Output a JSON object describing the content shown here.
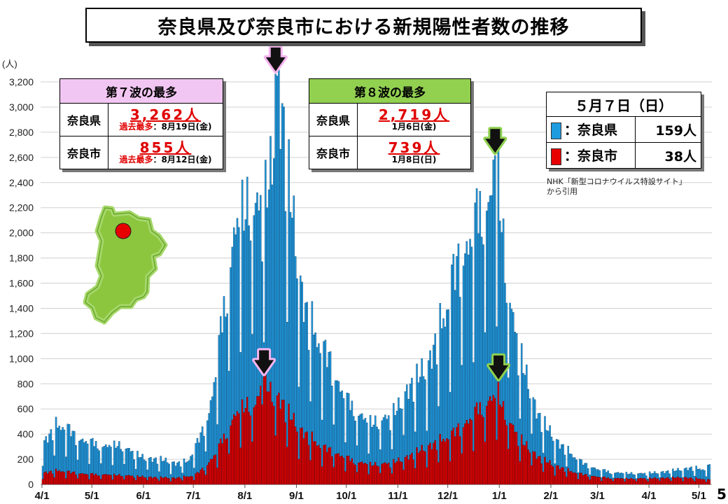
{
  "title": "奈良県及び奈良市における新規陽性者数の推移",
  "page_number": "5",
  "source_note": "NHK「新型コロナウイルス特設サイト」\nから引用",
  "wave7": {
    "heading": "第７波の最多",
    "head_color": "#f2c6f2",
    "pref_label": "奈良県",
    "pref_value": "3,262人",
    "pref_note_prefix": "過去最多",
    "pref_note_date": "：8月19日(金)",
    "city_label": "奈良市",
    "city_value": "855人",
    "city_note_prefix": "過去最多",
    "city_note_date": "：8月12日(金)"
  },
  "wave8": {
    "heading": "第８波の最多",
    "head_color": "#92d050",
    "pref_label": "奈良県",
    "pref_value": "2,719人",
    "pref_date": "1月6日(金)",
    "city_label": "奈良市",
    "city_value": "739人",
    "city_date": "1月8日(日)"
  },
  "latest": {
    "heading": "５月７日（日）",
    "pref_label": "：奈良県",
    "pref_value": "159人",
    "city_label": "：奈良市",
    "city_value": "38人"
  },
  "colors": {
    "prefecture_bar": "#1f9be0",
    "city_bar": "#e60000",
    "map_fill": "#8cc63f",
    "map_marker": "#e60000",
    "wave7_arrow": "#f7b6f0",
    "wave8_arrow": "#8fd14f"
  },
  "chart_data": {
    "type": "bar",
    "ylabel": "(人)",
    "ylim": [
      0,
      3200
    ],
    "yticks": [
      0,
      200,
      400,
      600,
      800,
      1000,
      1200,
      1400,
      1600,
      1800,
      2000,
      2200,
      2400,
      2600,
      2800,
      3000,
      3200
    ],
    "ytick_labels": [
      "0",
      "200",
      "400",
      "600",
      "800",
      "1,000",
      "1,200",
      "1,400",
      "1,600",
      "1,800",
      "2,000",
      "2,200",
      "2,400",
      "2,600",
      "2,800",
      "3,000",
      "3,200"
    ],
    "x_tick_labels": [
      "4/1",
      "5/1",
      "6/1",
      "7/1",
      "8/1",
      "9/1",
      "10/1",
      "11/1",
      "12/1",
      "1/1",
      "2/1",
      "3/1",
      "4/1",
      "5/1"
    ],
    "x_tick_day_index": [
      0,
      30,
      61,
      91,
      122,
      153,
      183,
      214,
      244,
      275,
      306,
      334,
      365,
      395
    ],
    "grid": "horizontal",
    "start_date": "2022-04-01",
    "end_date": "2023-05-07",
    "series": [
      {
        "name": "奈良県",
        "color": "#1f9be0",
        "anchors": [
          [
            0,
            320
          ],
          [
            8,
            460
          ],
          [
            14,
            470
          ],
          [
            20,
            370
          ],
          [
            30,
            330
          ],
          [
            37,
            300
          ],
          [
            45,
            320
          ],
          [
            55,
            250
          ],
          [
            61,
            210
          ],
          [
            70,
            200
          ],
          [
            80,
            165
          ],
          [
            87,
            180
          ],
          [
            91,
            280
          ],
          [
            96,
            420
          ],
          [
            100,
            570
          ],
          [
            104,
            900
          ],
          [
            108,
            1300
          ],
          [
            112,
            1680
          ],
          [
            116,
            2050
          ],
          [
            120,
            2200
          ],
          [
            124,
            2250
          ],
          [
            127,
            2150
          ],
          [
            130,
            2200
          ],
          [
            134,
            2300
          ],
          [
            138,
            2550
          ],
          [
            140,
            3262
          ],
          [
            144,
            3000
          ],
          [
            148,
            2400
          ],
          [
            152,
            1900
          ],
          [
            156,
            1500
          ],
          [
            160,
            1300
          ],
          [
            166,
            1150
          ],
          [
            172,
            1000
          ],
          [
            178,
            800
          ],
          [
            184,
            650
          ],
          [
            190,
            560
          ],
          [
            196,
            500
          ],
          [
            202,
            500
          ],
          [
            208,
            530
          ],
          [
            214,
            620
          ],
          [
            220,
            780
          ],
          [
            226,
            850
          ],
          [
            232,
            950
          ],
          [
            238,
            1200
          ],
          [
            242,
            1350
          ],
          [
            246,
            1650
          ],
          [
            250,
            1750
          ],
          [
            254,
            1850
          ],
          [
            258,
            2000
          ],
          [
            262,
            2150
          ],
          [
            266,
            2250
          ],
          [
            269,
            2200
          ],
          [
            272,
            2719
          ],
          [
            275,
            2300
          ],
          [
            278,
            1750
          ],
          [
            282,
            1350
          ],
          [
            286,
            1100
          ],
          [
            290,
            900
          ],
          [
            294,
            720
          ],
          [
            298,
            560
          ],
          [
            304,
            430
          ],
          [
            310,
            330
          ],
          [
            318,
            240
          ],
          [
            326,
            160
          ],
          [
            334,
            120
          ],
          [
            342,
            95
          ],
          [
            350,
            90
          ],
          [
            360,
            85
          ],
          [
            370,
            95
          ],
          [
            380,
            110
          ],
          [
            390,
            130
          ],
          [
            398,
            120
          ],
          [
            401,
            159
          ]
        ],
        "values": []
      },
      {
        "name": "奈良市",
        "color": "#e60000",
        "anchors": [
          [
            0,
            90
          ],
          [
            10,
            110
          ],
          [
            20,
            90
          ],
          [
            30,
            80
          ],
          [
            45,
            75
          ],
          [
            61,
            60
          ],
          [
            80,
            50
          ],
          [
            91,
            70
          ],
          [
            98,
            140
          ],
          [
            104,
            250
          ],
          [
            110,
            400
          ],
          [
            116,
            560
          ],
          [
            122,
            640
          ],
          [
            128,
            610
          ],
          [
            133,
            855
          ],
          [
            138,
            700
          ],
          [
            143,
            690
          ],
          [
            148,
            560
          ],
          [
            154,
            440
          ],
          [
            160,
            380
          ],
          [
            168,
            300
          ],
          [
            178,
            240
          ],
          [
            188,
            180
          ],
          [
            198,
            160
          ],
          [
            208,
            165
          ],
          [
            216,
            200
          ],
          [
            224,
            250
          ],
          [
            232,
            300
          ],
          [
            240,
            350
          ],
          [
            248,
            420
          ],
          [
            256,
            510
          ],
          [
            262,
            600
          ],
          [
            267,
            640
          ],
          [
            271,
            700
          ],
          [
            274,
            739
          ],
          [
            278,
            560
          ],
          [
            284,
            420
          ],
          [
            290,
            320
          ],
          [
            298,
            220
          ],
          [
            306,
            160
          ],
          [
            316,
            110
          ],
          [
            326,
            75
          ],
          [
            340,
            50
          ],
          [
            355,
            45
          ],
          [
            370,
            50
          ],
          [
            385,
            55
          ],
          [
            401,
            38
          ]
        ],
        "values": []
      }
    ],
    "annotations": [
      {
        "text": "第７波 奈良県最多",
        "day_index": 140,
        "color": "#f7b6f0",
        "target": "奈良県"
      },
      {
        "text": "第７波 奈良市最多",
        "day_index": 133,
        "color": "#f7b6f0",
        "target": "奈良市"
      },
      {
        "text": "第８波 奈良県最多",
        "day_index": 272,
        "color": "#8fd14f",
        "target": "奈良県"
      },
      {
        "text": "第８波 奈良市最多",
        "day_index": 274,
        "color": "#8fd14f",
        "target": "奈良市"
      }
    ]
  }
}
